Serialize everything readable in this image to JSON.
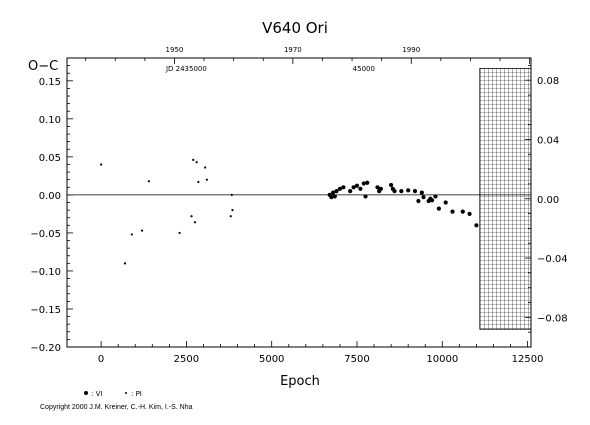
{
  "chart_data": {
    "type": "scatter",
    "title": "V640  Ori",
    "xlabel": "Epoch",
    "ylabel": "O−C",
    "xlim": [
      -1000,
      12600
    ],
    "ylim": [
      -0.2,
      0.18
    ],
    "x_ticks": [
      {
        "value": 0,
        "label": "0"
      },
      {
        "value": 2500,
        "label": "2500"
      },
      {
        "value": 5000,
        "label": "5000"
      },
      {
        "value": 7500,
        "label": "7500"
      },
      {
        "value": 10000,
        "label": "10000"
      },
      {
        "value": 12500,
        "label": "12500"
      }
    ],
    "y_ticks": [
      {
        "value": -0.2,
        "label": "−0.20"
      },
      {
        "value": -0.15,
        "label": "−0.15"
      },
      {
        "value": -0.1,
        "label": "−0.10"
      },
      {
        "value": -0.05,
        "label": "−0.05"
      },
      {
        "value": 0.0,
        "label": "0.00"
      },
      {
        "value": 0.05,
        "label": "0.05"
      },
      {
        "value": 0.1,
        "label": "0.10"
      },
      {
        "value": 0.15,
        "label": "0.15"
      }
    ],
    "right_ticks": [
      {
        "value": -0.08,
        "label": "−0.08"
      },
      {
        "value": -0.04,
        "label": "−0.04"
      },
      {
        "value": 0.0,
        "label": "0.00"
      },
      {
        "value": 0.04,
        "label": "0.04"
      },
      {
        "value": 0.08,
        "label": "0.08"
      }
    ],
    "top_year_ticks": [
      {
        "value": 2150,
        "label": "1950"
      },
      {
        "value": 5620,
        "label": "1970"
      },
      {
        "value": 9090,
        "label": "1990"
      }
    ],
    "top_jd_labels": [
      {
        "value": 2500,
        "label": "JD 2435000"
      },
      {
        "value": 7700,
        "label": "45000"
      }
    ],
    "zero_line": 0,
    "hatched_region": {
      "x_from": 11100,
      "x_to": 12600,
      "y_from": -0.088,
      "y_to": 0.088
    },
    "legend_labels": [
      ": VI",
      ": PI"
    ],
    "series": [
      {
        "marker": "small-dot",
        "points": [
          [
            0,
            0.04
          ],
          [
            700,
            -0.09
          ],
          [
            900,
            -0.052
          ],
          [
            1200,
            -0.047
          ],
          [
            1400,
            0.018
          ],
          [
            2300,
            -0.05
          ],
          [
            2650,
            -0.028
          ],
          [
            2700,
            0.046
          ],
          [
            2750,
            -0.036
          ],
          [
            2800,
            0.043
          ],
          [
            2850,
            0.017
          ],
          [
            3050,
            0.036
          ],
          [
            3100,
            0.02
          ],
          [
            3800,
            -0.028
          ],
          [
            3850,
            -0.02
          ],
          [
            3830,
            0.0
          ]
        ]
      },
      {
        "marker": "large-dot",
        "points": [
          [
            6700,
            0.0
          ],
          [
            6750,
            -0.003
          ],
          [
            6800,
            0.003
          ],
          [
            6850,
            -0.002
          ],
          [
            6900,
            0.005
          ],
          [
            7000,
            0.008
          ],
          [
            7100,
            0.01
          ],
          [
            7300,
            0.005
          ],
          [
            7400,
            0.01
          ],
          [
            7500,
            0.012
          ],
          [
            7600,
            0.008
          ],
          [
            7700,
            0.015
          ],
          [
            7800,
            0.016
          ],
          [
            7750,
            -0.002
          ],
          [
            8100,
            0.01
          ],
          [
            8150,
            0.005
          ],
          [
            8200,
            0.008
          ],
          [
            8500,
            0.013
          ],
          [
            8550,
            0.008
          ],
          [
            8600,
            0.005
          ],
          [
            8800,
            0.005
          ],
          [
            9000,
            0.006
          ],
          [
            9200,
            0.005
          ],
          [
            9300,
            -0.008
          ],
          [
            9400,
            0.003
          ],
          [
            9450,
            -0.003
          ],
          [
            9600,
            -0.008
          ],
          [
            9650,
            -0.005
          ],
          [
            9700,
            -0.007
          ],
          [
            9800,
            -0.002
          ],
          [
            9900,
            -0.018
          ],
          [
            10100,
            -0.01
          ],
          [
            10300,
            -0.022
          ],
          [
            10600,
            -0.022
          ],
          [
            10800,
            -0.025
          ],
          [
            11000,
            -0.04
          ]
        ]
      }
    ]
  },
  "copyright": "Copyright 2000 J.M. Kreiner, C.-H. Kim, I.-S. Nha"
}
